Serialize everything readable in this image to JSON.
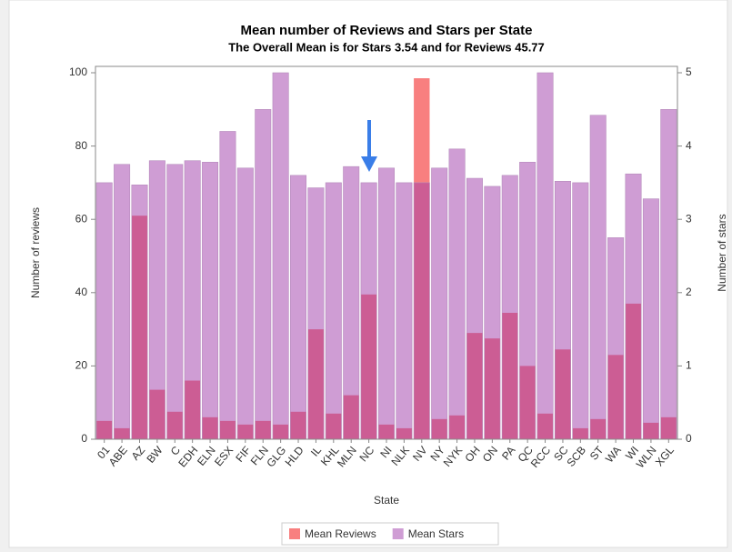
{
  "chart_data": {
    "type": "bar",
    "title": "Mean number of Reviews and Stars per State",
    "subtitle": "The Overall Mean is for Stars 3.54 and for Reviews 45.77",
    "x_label": "State",
    "y_label": "Number of reviews",
    "y2_label": "Number of stars",
    "categories": [
      "01",
      "ABE",
      "AZ",
      "BW",
      "C",
      "EDH",
      "ELN",
      "ESX",
      "FIF",
      "FLN",
      "GLG",
      "HLD",
      "IL",
      "KHL",
      "MLN",
      "NC",
      "NI",
      "NLK",
      "NV",
      "NY",
      "NYK",
      "OH",
      "ON",
      "PA",
      "QC",
      "RCC",
      "SC",
      "SCB",
      "ST",
      "WA",
      "WI",
      "WLN",
      "XGL"
    ],
    "series": [
      {
        "name": "Mean Reviews",
        "color": "#f87f7f",
        "values": [
          5,
          3,
          61,
          13.5,
          7.5,
          16,
          6,
          5,
          4,
          5,
          4,
          7.5,
          30,
          7,
          12,
          39.5,
          4,
          3,
          98.5,
          5.5,
          6.5,
          29,
          27.5,
          34.5,
          20,
          7,
          24.5,
          3,
          5.5,
          23,
          37,
          4.5,
          6
        ]
      },
      {
        "name": "Mean Stars",
        "color": "#a03caa",
        "axis": "y2",
        "values": [
          3.5,
          3.75,
          3.47,
          3.8,
          3.75,
          3.8,
          3.78,
          4.2,
          3.7,
          4.5,
          5,
          3.6,
          3.43,
          3.5,
          3.72,
          3.5,
          3.7,
          3.5,
          3.5,
          3.7,
          3.96,
          3.56,
          3.45,
          3.6,
          3.78,
          5,
          3.52,
          3.5,
          4.42,
          2.75,
          3.62,
          3.28,
          4.5
        ]
      }
    ],
    "ylim": [
      0,
      100
    ],
    "yticks": [
      0,
      20,
      40,
      60,
      80,
      100
    ],
    "y2lim": [
      0,
      5
    ],
    "y2ticks": [
      0,
      1,
      2,
      3,
      4,
      5
    ],
    "legend": "bottom"
  }
}
